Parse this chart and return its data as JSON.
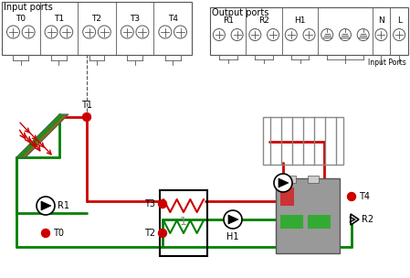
{
  "title": "",
  "bg_color": "#ffffff",
  "input_ports_label": "Input ports",
  "output_ports_label": "Output ports",
  "input_port_labels": [
    "T0",
    "T1",
    "T2",
    "T3",
    "T4"
  ],
  "output_port_labels": [
    "R1",
    "R2",
    "H1",
    "",
    "",
    "",
    "N",
    "L"
  ],
  "input_ports_note": "Input Ports",
  "red_color": "#cc0000",
  "green_color": "#008000",
  "dark_red": "#cc0000",
  "line_width": 2.0,
  "collector_color": "#8B6914",
  "collector_green": "#228B22",
  "gray_box_color": "#888888",
  "pump_circle_color": "#000000",
  "valve_color": "#000000",
  "sensor_color": "#cc3300"
}
